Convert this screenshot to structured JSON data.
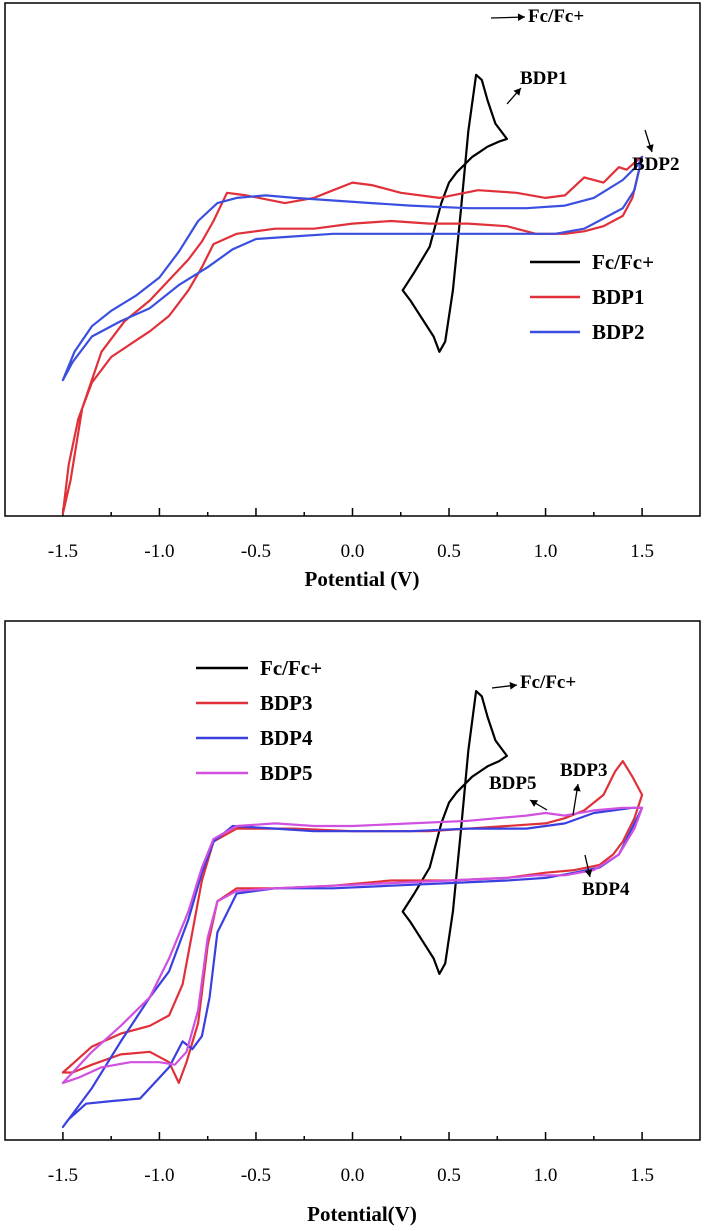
{
  "chart_data": [
    {
      "type": "line",
      "title": "",
      "xlabel": "Potential (V)",
      "ylabel": "",
      "xlim": [
        -1.8,
        1.8
      ],
      "ylim": [
        -1.0,
        1.0
      ],
      "x_ticks": [
        "-1.5",
        "-1.0",
        "-0.5",
        "0.0",
        "0.5",
        "1.0",
        "1.5"
      ],
      "grid": false,
      "legend_position": "right",
      "series": [
        {
          "name": "Fc/Fc+",
          "color": "#000000",
          "x": [
            0.26,
            0.3,
            0.36,
            0.42,
            0.45,
            0.48,
            0.52,
            0.56,
            0.6,
            0.64,
            0.67,
            0.7,
            0.74,
            0.8,
            0.76,
            0.7,
            0.66,
            0.62,
            0.58,
            0.54,
            0.5,
            0.46,
            0.4,
            0.32,
            0.26
          ],
          "y": [
            -0.12,
            -0.16,
            -0.23,
            -0.3,
            -0.36,
            -0.32,
            -0.12,
            0.18,
            0.5,
            0.72,
            0.7,
            0.62,
            0.53,
            0.47,
            0.46,
            0.44,
            0.42,
            0.4,
            0.37,
            0.34,
            0.3,
            0.22,
            0.05,
            -0.05,
            -0.12
          ]
        },
        {
          "name": "BDP1",
          "color": "#e0303a",
          "x": [
            -1.5,
            -1.46,
            -1.4,
            -1.3,
            -1.18,
            -1.05,
            -0.95,
            -0.85,
            -0.78,
            -0.72,
            -0.65,
            -0.55,
            -0.35,
            -0.2,
            -0.1,
            0.0,
            0.1,
            0.25,
            0.45,
            0.65,
            0.85,
            1.0,
            1.1,
            1.2,
            1.3,
            1.38,
            1.42,
            1.45,
            1.48,
            1.5,
            1.45,
            1.4,
            1.3,
            1.2,
            1.1,
            0.95,
            0.8,
            0.6,
            0.4,
            0.2,
            0.0,
            -0.2,
            -0.4,
            -0.6,
            -0.72,
            -0.78,
            -0.85,
            -0.95,
            -1.05,
            -1.15,
            -1.25,
            -1.35,
            -1.42,
            -1.47,
            -1.5
          ],
          "y": [
            -0.99,
            -0.86,
            -0.58,
            -0.36,
            -0.24,
            -0.16,
            -0.08,
            0.0,
            0.07,
            0.15,
            0.26,
            0.25,
            0.22,
            0.24,
            0.27,
            0.3,
            0.29,
            0.26,
            0.24,
            0.27,
            0.26,
            0.24,
            0.25,
            0.32,
            0.3,
            0.36,
            0.35,
            0.37,
            0.39,
            0.4,
            0.24,
            0.17,
            0.13,
            0.11,
            0.1,
            0.1,
            0.13,
            0.14,
            0.14,
            0.15,
            0.14,
            0.12,
            0.12,
            0.1,
            0.06,
            -0.03,
            -0.12,
            -0.22,
            -0.28,
            -0.33,
            -0.38,
            -0.48,
            -0.62,
            -0.8,
            -0.99
          ]
        },
        {
          "name": "BDP2",
          "color": "#3a4fe0",
          "x": [
            -1.5,
            -1.44,
            -1.35,
            -1.25,
            -1.12,
            -1.0,
            -0.9,
            -0.8,
            -0.7,
            -0.6,
            -0.45,
            -0.3,
            -0.1,
            0.1,
            0.3,
            0.6,
            0.9,
            1.1,
            1.25,
            1.4,
            1.48,
            1.5,
            1.46,
            1.4,
            1.3,
            1.2,
            1.05,
            0.9,
            0.7,
            0.5,
            0.3,
            0.1,
            -0.1,
            -0.3,
            -0.5,
            -0.62,
            -0.75,
            -0.9,
            -1.05,
            -1.2,
            -1.35,
            -1.45,
            -1.5
          ],
          "y": [
            -0.47,
            -0.36,
            -0.26,
            -0.2,
            -0.14,
            -0.07,
            0.03,
            0.15,
            0.22,
            0.24,
            0.25,
            0.24,
            0.23,
            0.22,
            0.21,
            0.2,
            0.2,
            0.21,
            0.24,
            0.31,
            0.37,
            0.4,
            0.27,
            0.2,
            0.16,
            0.12,
            0.1,
            0.1,
            0.1,
            0.1,
            0.1,
            0.1,
            0.1,
            0.09,
            0.08,
            0.04,
            -0.03,
            -0.1,
            -0.19,
            -0.24,
            -0.3,
            -0.4,
            -0.47
          ]
        }
      ],
      "annotations": [
        {
          "text": "Fc/Fc+",
          "target_x": 0.64,
          "target_y": 0.72
        },
        {
          "text": "BDP1",
          "target_x": 0.81,
          "target_y": 0.4
        },
        {
          "text": "BDP2",
          "target_x": 1.46,
          "target_y": 0.24
        }
      ]
    },
    {
      "type": "line",
      "title": "",
      "xlabel": "Potential(V)",
      "ylabel": "",
      "xlim": [
        -1.8,
        1.8
      ],
      "ylim": [
        -1.0,
        1.0
      ],
      "x_ticks": [
        "-1.5",
        "-1.0",
        "-0.5",
        "0.0",
        "0.5",
        "1.0",
        "1.5"
      ],
      "grid": false,
      "legend_position": "top-left",
      "series": [
        {
          "name": "Fc/Fc+",
          "color": "#000000",
          "x": [
            0.26,
            0.3,
            0.36,
            0.42,
            0.45,
            0.48,
            0.52,
            0.56,
            0.6,
            0.64,
            0.67,
            0.7,
            0.74,
            0.8,
            0.76,
            0.7,
            0.66,
            0.62,
            0.58,
            0.54,
            0.5,
            0.46,
            0.4,
            0.32,
            0.26
          ],
          "y": [
            -0.12,
            -0.16,
            -0.23,
            -0.3,
            -0.36,
            -0.32,
            -0.12,
            0.18,
            0.5,
            0.73,
            0.71,
            0.63,
            0.54,
            0.48,
            0.46,
            0.44,
            0.42,
            0.4,
            0.37,
            0.34,
            0.3,
            0.22,
            0.05,
            -0.05,
            -0.12
          ]
        },
        {
          "name": "BDP3",
          "color": "#e0303a",
          "x": [
            -1.5,
            -1.44,
            -1.35,
            -1.2,
            -1.05,
            -0.95,
            -0.88,
            -0.83,
            -0.78,
            -0.72,
            -0.6,
            -0.3,
            0.0,
            0.4,
            0.8,
            1.0,
            1.1,
            1.2,
            1.3,
            1.36,
            1.4,
            1.45,
            1.5,
            1.46,
            1.4,
            1.35,
            1.28,
            1.15,
            1.0,
            0.8,
            0.5,
            0.2,
            -0.1,
            -0.4,
            -0.6,
            -0.7,
            -0.75,
            -0.8,
            -0.86,
            -0.9,
            -0.95,
            -1.05,
            -1.2,
            -1.35,
            -1.45,
            -1.5
          ],
          "y": [
            -0.74,
            -0.7,
            -0.64,
            -0.59,
            -0.56,
            -0.52,
            -0.4,
            -0.2,
            0.0,
            0.15,
            0.2,
            0.2,
            0.19,
            0.19,
            0.21,
            0.22,
            0.24,
            0.27,
            0.33,
            0.42,
            0.46,
            0.4,
            0.33,
            0.24,
            0.15,
            0.1,
            0.06,
            0.04,
            0.03,
            0.01,
            0.0,
            0.0,
            -0.02,
            -0.03,
            -0.03,
            -0.08,
            -0.25,
            -0.55,
            -0.7,
            -0.78,
            -0.7,
            -0.66,
            -0.67,
            -0.71,
            -0.74,
            -0.74
          ]
        },
        {
          "name": "BDP4",
          "color": "#3a3fe0",
          "x": [
            -1.5,
            -1.45,
            -1.35,
            -1.2,
            -1.05,
            -0.95,
            -0.85,
            -0.78,
            -0.72,
            -0.62,
            -0.4,
            -0.2,
            0.0,
            0.3,
            0.6,
            0.9,
            1.1,
            1.25,
            1.35,
            1.45,
            1.5,
            1.46,
            1.38,
            1.28,
            1.15,
            1.0,
            0.8,
            0.5,
            0.2,
            -0.1,
            -0.4,
            -0.6,
            -0.7,
            -0.74,
            -0.78,
            -0.83,
            -0.88,
            -0.95,
            -1.1,
            -1.25,
            -1.38,
            -1.47,
            -1.5
          ],
          "y": [
            -0.95,
            -0.9,
            -0.8,
            -0.62,
            -0.45,
            -0.35,
            -0.15,
            0.03,
            0.15,
            0.21,
            0.2,
            0.19,
            0.19,
            0.19,
            0.2,
            0.2,
            0.22,
            0.26,
            0.27,
            0.28,
            0.28,
            0.22,
            0.1,
            0.05,
            0.03,
            0.01,
            0.0,
            -0.01,
            -0.02,
            -0.03,
            -0.03,
            -0.05,
            -0.2,
            -0.45,
            -0.6,
            -0.65,
            -0.62,
            -0.72,
            -0.84,
            -0.85,
            -0.86,
            -0.92,
            -0.95
          ]
        },
        {
          "name": "BDP5",
          "color": "#d050e0",
          "x": [
            -1.5,
            -1.45,
            -1.35,
            -1.2,
            -1.05,
            -0.95,
            -0.85,
            -0.78,
            -0.72,
            -0.6,
            -0.4,
            -0.2,
            0.0,
            0.3,
            0.6,
            0.9,
            1.0,
            1.1,
            1.25,
            1.4,
            1.5,
            1.46,
            1.38,
            1.25,
            1.1,
            0.95,
            0.8,
            0.5,
            0.2,
            -0.1,
            -0.4,
            -0.6,
            -0.7,
            -0.75,
            -0.8,
            -0.86,
            -0.92,
            -1.0,
            -1.15,
            -1.3,
            -1.42,
            -1.5
          ],
          "y": [
            -0.78,
            -0.74,
            -0.66,
            -0.56,
            -0.45,
            -0.3,
            -0.12,
            0.05,
            0.16,
            0.21,
            0.22,
            0.21,
            0.21,
            0.22,
            0.23,
            0.25,
            0.26,
            0.25,
            0.27,
            0.28,
            0.28,
            0.2,
            0.1,
            0.04,
            0.02,
            0.02,
            0.01,
            0.0,
            -0.01,
            -0.02,
            -0.03,
            -0.04,
            -0.08,
            -0.22,
            -0.5,
            -0.66,
            -0.71,
            -0.7,
            -0.7,
            -0.72,
            -0.76,
            -0.78
          ]
        }
      ],
      "annotations": [
        {
          "text": "Fc/Fc+",
          "target_x": 0.64,
          "target_y": 0.73
        },
        {
          "text": "BDP5",
          "target_x": 0.98,
          "target_y": 0.25
        },
        {
          "text": "BDP3",
          "target_x": 1.1,
          "target_y": 0.22
        },
        {
          "text": "BDP4",
          "target_x": 1.18,
          "target_y": 0.04
        }
      ]
    }
  ]
}
